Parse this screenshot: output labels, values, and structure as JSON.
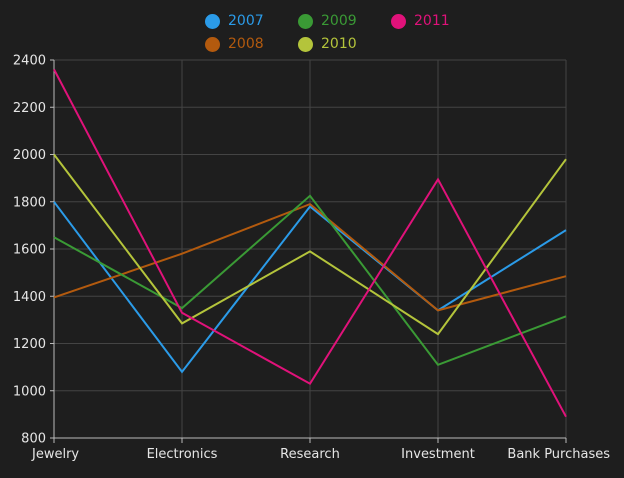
{
  "chart_data": {
    "type": "line",
    "categories": [
      "Jewelry",
      "Electronics",
      "Research",
      "Investment",
      "Bank Purchases"
    ],
    "ylim": [
      800,
      2400
    ],
    "yticks": [
      800,
      1000,
      1200,
      1400,
      1600,
      1800,
      2000,
      2200,
      2400
    ],
    "grid": true,
    "legend_position": "top",
    "series": [
      {
        "name": "2007",
        "color": "#2b9be8",
        "values": [
          1800,
          1080,
          1780,
          1340,
          1680
        ]
      },
      {
        "name": "2008",
        "color": "#b35a0e",
        "values": [
          1395,
          1580,
          1790,
          1340,
          1485
        ]
      },
      {
        "name": "2009",
        "color": "#3a9a35",
        "values": [
          1650,
          1350,
          1825,
          1110,
          1315
        ]
      },
      {
        "name": "2010",
        "color": "#b4c43b",
        "values": [
          2000,
          1285,
          1590,
          1240,
          1980
        ]
      },
      {
        "name": "2011",
        "color": "#e0127a",
        "values": [
          2360,
          1330,
          1030,
          1895,
          890
        ]
      }
    ]
  },
  "colors": {
    "background": "#1e1e1e",
    "grid": "#444444",
    "axis": "#bbbbbb",
    "text": "#e6e6e6"
  }
}
